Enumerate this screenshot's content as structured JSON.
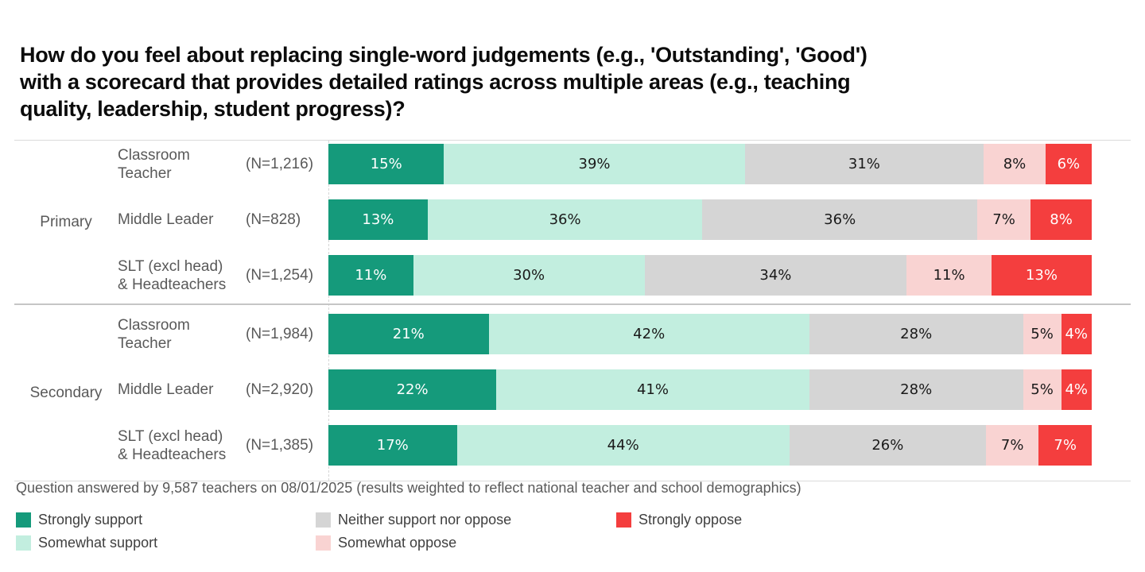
{
  "title_lines": [
    "How do you feel about replacing single-word judgements (e.g., 'Outstanding', 'Good')",
    "with a scorecard that provides detailed ratings across multiple areas (e.g., teaching",
    "quality, leadership, student progress)?"
  ],
  "footer": "Question answered by 9,587 teachers on 08/01/2025 (results weighted to reflect national teacher and school demographics)",
  "chart_data": {
    "type": "bar",
    "stacked": true,
    "orientation": "horizontal",
    "unit": "%",
    "title": "How do you feel about replacing single-word judgements (e.g., 'Outstanding', 'Good') with a scorecard that provides detailed ratings across multiple areas (e.g., teaching quality, leadership, student progress)?",
    "series_names": [
      "Strongly support",
      "Somewhat support",
      "Neither support nor oppose",
      "Somewhat oppose",
      "Strongly oppose"
    ],
    "series_colors": [
      "#159A7B",
      "#C2EEDF",
      "#D5D5D5",
      "#F9D3D2",
      "#F43E3E"
    ],
    "value_label_colors": [
      "#FFFFFF",
      "#1A1A1A",
      "#1A1A1A",
      "#1A1A1A",
      "#FFFFFF"
    ],
    "legend_position": "bottom",
    "groups": [
      {
        "label": "Primary",
        "rows": [
          {
            "role": "Classroom Teacher",
            "role_lines": [
              "Classroom",
              "Teacher"
            ],
            "n_label": "(N=1,216)",
            "values": [
              15,
              39,
              31,
              8,
              6
            ]
          },
          {
            "role": "Middle Leader",
            "role_lines": [
              "Middle Leader"
            ],
            "n_label": "(N=828)",
            "values": [
              13,
              36,
              36,
              7,
              8
            ]
          },
          {
            "role": "SLT (excl head) & Headteachers",
            "role_lines": [
              "SLT (excl head)",
              "& Headteachers"
            ],
            "n_label": "(N=1,254)",
            "values": [
              11,
              30,
              34,
              11,
              13
            ]
          }
        ]
      },
      {
        "label": "Secondary",
        "rows": [
          {
            "role": "Classroom Teacher",
            "role_lines": [
              "Classroom",
              "Teacher"
            ],
            "n_label": "(N=1,984)",
            "values": [
              21,
              42,
              28,
              5,
              4
            ]
          },
          {
            "role": "Middle Leader",
            "role_lines": [
              "Middle Leader"
            ],
            "n_label": "(N=2,920)",
            "values": [
              22,
              41,
              28,
              5,
              4
            ]
          },
          {
            "role": "SLT (excl head) & Headteachers",
            "role_lines": [
              "SLT (excl head)",
              "& Headteachers"
            ],
            "n_label": "(N=1,385)",
            "values": [
              17,
              44,
              26,
              7,
              7
            ]
          }
        ]
      }
    ],
    "legend": [
      {
        "label": "Strongly support",
        "color": "#159A7B"
      },
      {
        "label": "Somewhat support",
        "color": "#C2EEDF"
      },
      {
        "label": "Neither support nor oppose",
        "color": "#D5D5D5"
      },
      {
        "label": "Somewhat oppose",
        "color": "#F9D3D2"
      },
      {
        "label": "Strongly oppose",
        "color": "#F43E3E"
      }
    ]
  }
}
